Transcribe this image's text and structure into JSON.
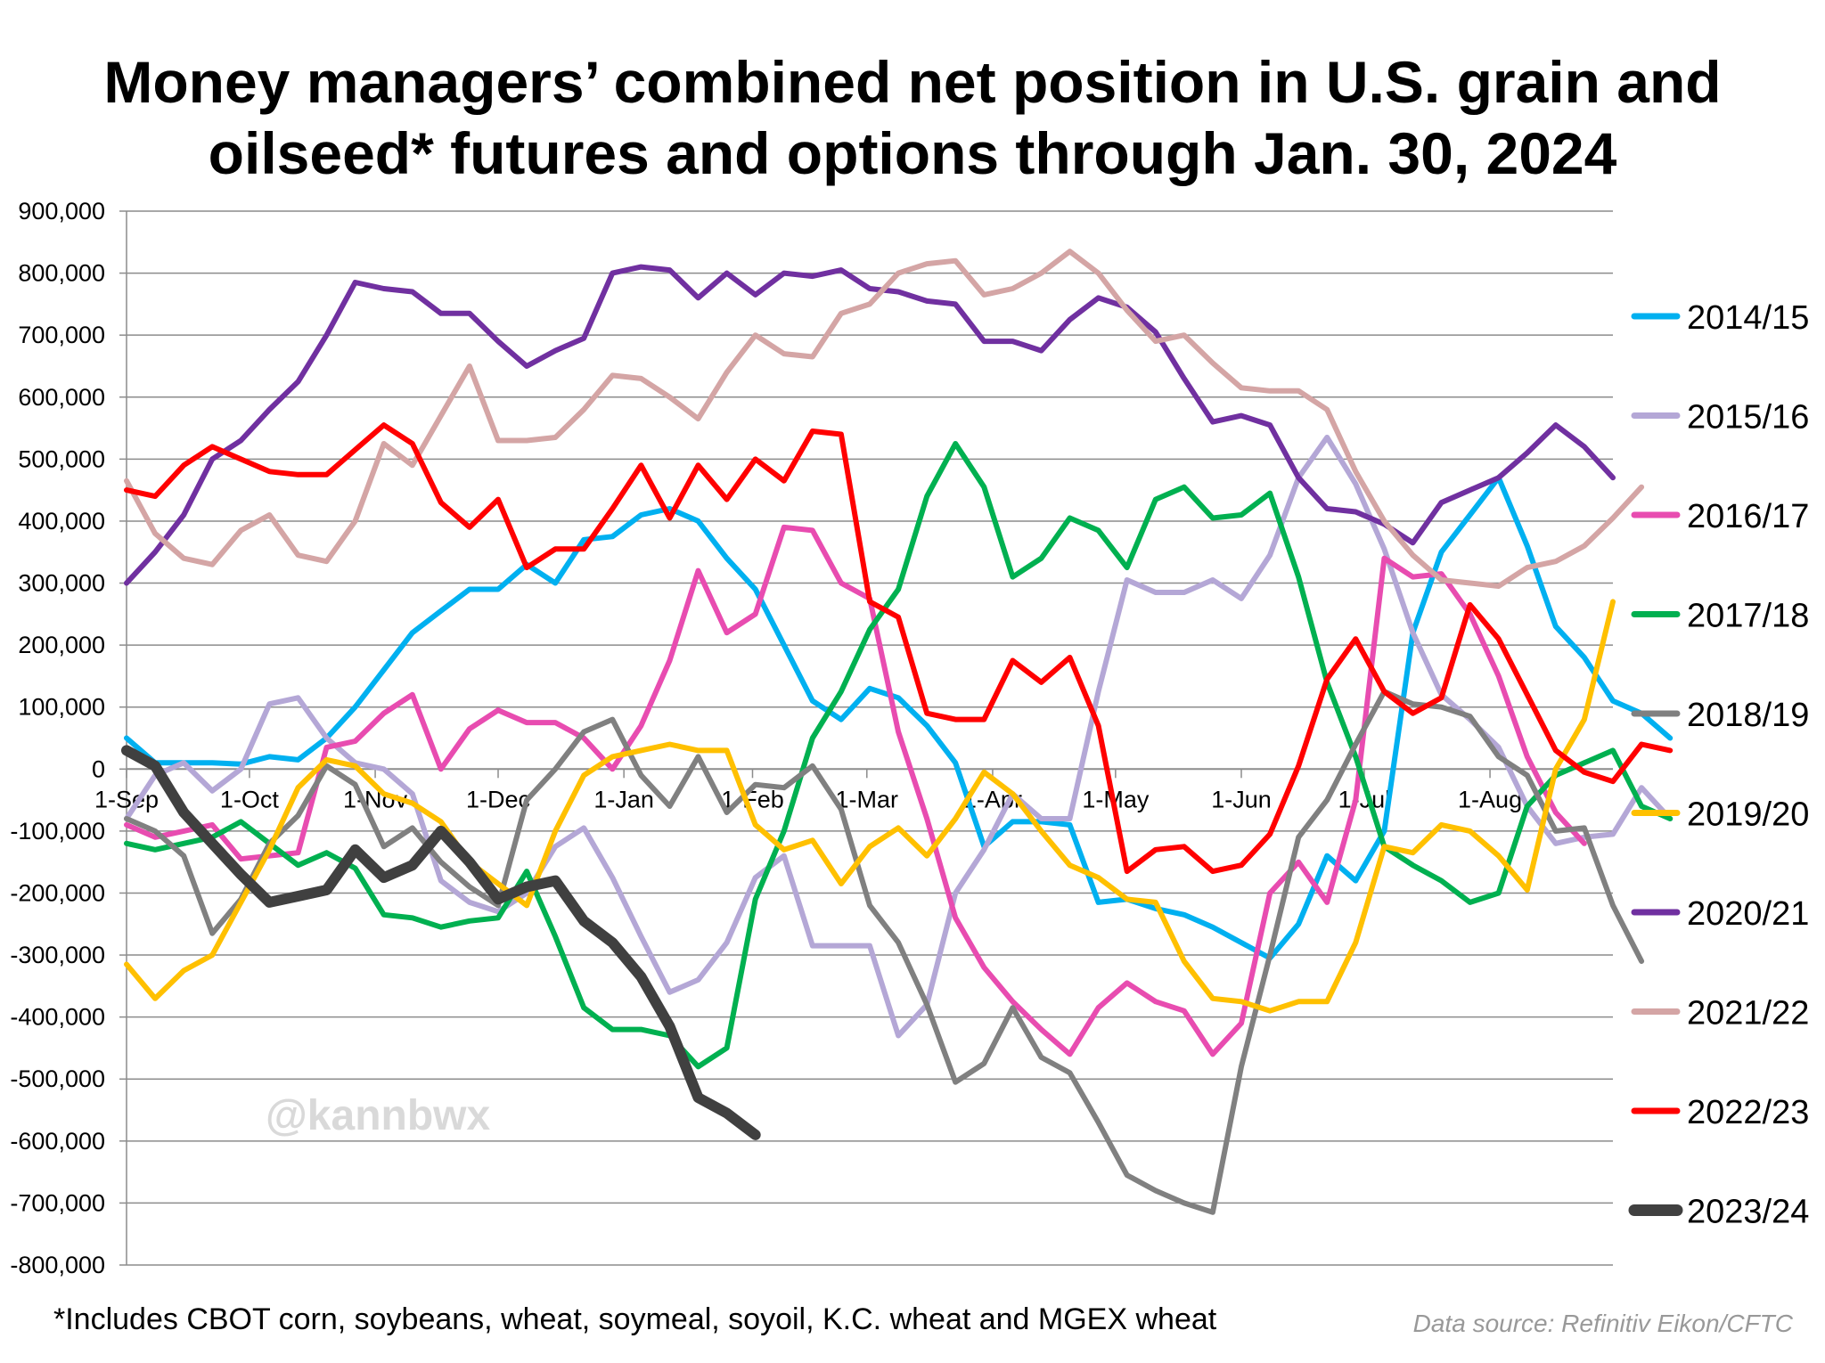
{
  "chart_data": {
    "type": "line",
    "title_lines": [
      "Money managers’ combined net position in U.S. grain and",
      "oilseed* futures and options through Jan. 30, 2024"
    ],
    "footnote": "*Includes CBOT corn, soybeans, wheat, soymeal, soyoil, K.C. wheat and MGEX wheat",
    "source": "Data source: Refinitiv Eikon/CFTC",
    "watermark": "@kannbwx",
    "ylim": [
      -800000,
      900000
    ],
    "yticks": [
      900000,
      800000,
      700000,
      600000,
      500000,
      400000,
      300000,
      200000,
      100000,
      0,
      -100000,
      -200000,
      -300000,
      -400000,
      -500000,
      -600000,
      -700000,
      -800000
    ],
    "ytick_labels": [
      "900,000",
      "800,000",
      "700,000",
      "600,000",
      "500,000",
      "400,000",
      "300,000",
      "200,000",
      "100,000",
      "0",
      "-100,000",
      "-200,000",
      "-300,000",
      "-400,000",
      "-500,000",
      "-600,000",
      "-700,000",
      "-800,000"
    ],
    "x_weeks": 52,
    "month_labels": [
      {
        "label": "1-Sep",
        "week": 0
      },
      {
        "label": "1-Oct",
        "week": 4.3
      },
      {
        "label": "1-Nov",
        "week": 8.7
      },
      {
        "label": "1-Dec",
        "week": 13
      },
      {
        "label": "1-Jan",
        "week": 17.4
      },
      {
        "label": "1-Feb",
        "week": 21.9
      },
      {
        "label": "1-Mar",
        "week": 25.9
      },
      {
        "label": "1-Apr",
        "week": 30.3
      },
      {
        "label": "1-May",
        "week": 34.6
      },
      {
        "label": "1-Jun",
        "week": 39
      },
      {
        "label": "1-Jul",
        "week": 43.3
      },
      {
        "label": "1-Aug",
        "week": 47.7
      }
    ],
    "series": [
      {
        "name": "2014/15",
        "color": "#00b0f0",
        "width": 6,
        "values": [
          50000,
          10000,
          10000,
          10000,
          8000,
          20000,
          15000,
          50000,
          100000,
          160000,
          220000,
          255000,
          290000,
          290000,
          330000,
          300000,
          370000,
          375000,
          410000,
          420000,
          400000,
          340000,
          290000,
          200000,
          110000,
          80000,
          130000,
          115000,
          70000,
          10000,
          -125000,
          -85000,
          -85000,
          -90000,
          -215000,
          -210000,
          -225000,
          -235000,
          -255000,
          -280000,
          -305000,
          -250000,
          -140000,
          -180000,
          -100000,
          220000,
          350000,
          410000,
          470000,
          360000,
          230000,
          180000,
          110000,
          90000,
          50000
        ]
      },
      {
        "name": "2015/16",
        "color": "#b4a7d6",
        "width": 6,
        "values": [
          -80000,
          -10000,
          10000,
          -35000,
          0,
          105000,
          115000,
          50000,
          10000,
          0,
          -40000,
          -180000,
          -215000,
          -230000,
          -200000,
          -125000,
          -95000,
          -175000,
          -270000,
          -360000,
          -340000,
          -280000,
          -175000,
          -140000,
          -285000,
          -285000,
          -285000,
          -430000,
          -380000,
          -200000,
          -130000,
          -40000,
          -80000,
          -80000,
          125000,
          305000,
          285000,
          285000,
          305000,
          275000,
          345000,
          470000,
          535000,
          460000,
          355000,
          220000,
          120000,
          80000,
          35000,
          -60000,
          -120000,
          -110000,
          -105000,
          -30000,
          -80000
        ]
      },
      {
        "name": "2016/17",
        "color": "#e84cb0",
        "width": 6,
        "values": [
          -90000,
          -110000,
          -100000,
          -90000,
          -145000,
          -140000,
          -135000,
          35000,
          45000,
          90000,
          120000,
          0,
          65000,
          95000,
          75000,
          75000,
          50000,
          0,
          70000,
          175000,
          320000,
          220000,
          250000,
          390000,
          385000,
          300000,
          275000,
          60000,
          -80000,
          -240000,
          -320000,
          -375000,
          -420000,
          -460000,
          -385000,
          -345000,
          -375000,
          -390000,
          -460000,
          -410000,
          -200000,
          -150000,
          -215000,
          -50000,
          340000,
          310000,
          315000,
          250000,
          150000,
          20000,
          -70000,
          -120000
        ]
      },
      {
        "name": "2017/18",
        "color": "#00b050",
        "width": 6,
        "values": [
          -120000,
          -130000,
          -120000,
          -110000,
          -85000,
          -120000,
          -155000,
          -135000,
          -160000,
          -235000,
          -240000,
          -255000,
          -245000,
          -240000,
          -165000,
          -270000,
          -385000,
          -420000,
          -420000,
          -430000,
          -480000,
          -450000,
          -210000,
          -100000,
          50000,
          125000,
          225000,
          290000,
          440000,
          525000,
          455000,
          310000,
          340000,
          405000,
          385000,
          325000,
          435000,
          455000,
          405000,
          410000,
          445000,
          310000,
          140000,
          20000,
          -125000,
          -155000,
          -180000,
          -215000,
          -200000,
          -60000,
          -10000,
          10000,
          30000,
          -60000,
          -80000
        ]
      },
      {
        "name": "2018/19",
        "color": "#808080",
        "width": 6,
        "values": [
          -80000,
          -100000,
          -140000,
          -265000,
          -210000,
          -120000,
          -75000,
          5000,
          -25000,
          -125000,
          -95000,
          -150000,
          -190000,
          -220000,
          -50000,
          0,
          60000,
          80000,
          -10000,
          -60000,
          20000,
          -70000,
          -25000,
          -30000,
          5000,
          -65000,
          -220000,
          -280000,
          -380000,
          -505000,
          -475000,
          -385000,
          -465000,
          -490000,
          -570000,
          -655000,
          -680000,
          -700000,
          -715000,
          -480000,
          -300000,
          -110000,
          -50000,
          40000,
          125000,
          105000,
          100000,
          85000,
          20000,
          -10000,
          -100000,
          -95000,
          -220000,
          -310000
        ]
      },
      {
        "name": "2019/20",
        "color": "#ffc000",
        "width": 6,
        "values": [
          -315000,
          -370000,
          -325000,
          -300000,
          -215000,
          -130000,
          -30000,
          15000,
          5000,
          -40000,
          -55000,
          -85000,
          -150000,
          -185000,
          -220000,
          -100000,
          -10000,
          20000,
          30000,
          40000,
          30000,
          30000,
          -90000,
          -130000,
          -115000,
          -185000,
          -125000,
          -95000,
          -140000,
          -80000,
          -5000,
          -40000,
          -100000,
          -155000,
          -175000,
          -210000,
          -215000,
          -310000,
          -370000,
          -375000,
          -390000,
          -375000,
          -375000,
          -280000,
          -125000,
          -135000,
          -90000,
          -100000,
          -140000,
          -195000,
          0,
          80000,
          270000
        ]
      },
      {
        "name": "2020/21",
        "color": "#7030a0",
        "width": 6,
        "values": [
          300000,
          350000,
          410000,
          500000,
          530000,
          580000,
          625000,
          700000,
          785000,
          775000,
          770000,
          735000,
          735000,
          690000,
          650000,
          675000,
          695000,
          800000,
          810000,
          805000,
          760000,
          800000,
          765000,
          800000,
          795000,
          805000,
          775000,
          770000,
          755000,
          750000,
          690000,
          690000,
          675000,
          725000,
          760000,
          745000,
          705000,
          630000,
          560000,
          570000,
          555000,
          470000,
          420000,
          415000,
          395000,
          365000,
          430000,
          450000,
          470000,
          510000,
          555000,
          520000,
          470000
        ]
      },
      {
        "name": "2021/22",
        "color": "#d4a5a5",
        "width": 6,
        "values": [
          465000,
          380000,
          340000,
          330000,
          385000,
          410000,
          345000,
          335000,
          400000,
          525000,
          490000,
          570000,
          650000,
          530000,
          530000,
          535000,
          580000,
          635000,
          630000,
          600000,
          565000,
          640000,
          700000,
          670000,
          665000,
          735000,
          750000,
          800000,
          815000,
          820000,
          765000,
          775000,
          800000,
          835000,
          800000,
          740000,
          690000,
          700000,
          655000,
          615000,
          610000,
          610000,
          580000,
          480000,
          400000,
          345000,
          305000,
          300000,
          295000,
          325000,
          335000,
          360000,
          405000,
          455000
        ]
      },
      {
        "name": "2022/23",
        "color": "#ff0000",
        "width": 6,
        "values": [
          450000,
          440000,
          490000,
          520000,
          500000,
          480000,
          475000,
          475000,
          515000,
          555000,
          525000,
          430000,
          390000,
          435000,
          325000,
          355000,
          355000,
          420000,
          490000,
          405000,
          490000,
          435000,
          500000,
          465000,
          545000,
          540000,
          270000,
          245000,
          90000,
          80000,
          80000,
          175000,
          140000,
          180000,
          70000,
          -165000,
          -130000,
          -125000,
          -165000,
          -155000,
          -105000,
          5000,
          145000,
          210000,
          125000,
          90000,
          115000,
          265000,
          210000,
          120000,
          30000,
          -5000,
          -20000,
          40000,
          30000
        ]
      },
      {
        "name": "2023/24",
        "color": "#404040",
        "width": 12,
        "values": [
          30000,
          5000,
          -70000,
          -120000,
          -170000,
          -215000,
          -205000,
          -195000,
          -130000,
          -175000,
          -155000,
          -100000,
          -150000,
          -210000,
          -190000,
          -180000,
          -245000,
          -280000,
          -335000,
          -415000,
          -530000,
          -555000,
          -590000
        ]
      }
    ]
  }
}
